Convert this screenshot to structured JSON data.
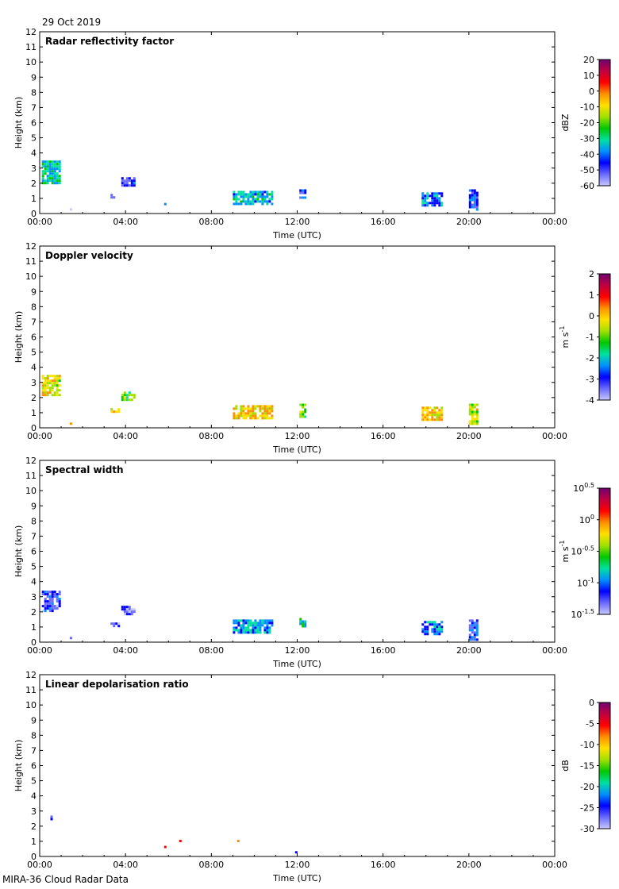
{
  "date": "29 Oct 2019",
  "footer": "MIRA-36 Cloud Radar Data",
  "colors": [
    "#c8c8ff",
    "#6a6aff",
    "#0000ff",
    "#0090ff",
    "#00e0a0",
    "#00c800",
    "#a0e000",
    "#ffe000",
    "#ff9000",
    "#ff0000",
    "#c00040",
    "#700070"
  ],
  "chart_data": [
    {
      "type": "heatmap",
      "title": "Radar reflectivity factor",
      "xlabel": "Time (UTC)",
      "ylabel": "Height (km)",
      "xticks": [
        "00:00",
        "04:00",
        "08:00",
        "12:00",
        "16:00",
        "20:00",
        "00:00"
      ],
      "xlim": [
        0,
        24
      ],
      "ylim": [
        0,
        12
      ],
      "yticks": [
        0,
        1,
        2,
        3,
        4,
        5,
        6,
        7,
        8,
        9,
        10,
        11,
        12
      ],
      "colorbar": {
        "label": "dBZ",
        "ticks": [
          "20",
          "10",
          "0",
          "-10",
          "-20",
          "-30",
          "-40",
          "-50",
          "-60"
        ],
        "range": [
          -60,
          20
        ]
      },
      "echoes": [
        {
          "t0": 0.1,
          "t1": 0.95,
          "h0": 2.0,
          "h1": 3.5,
          "level": 0.35
        },
        {
          "t0": 3.3,
          "t1": 3.7,
          "h0": 1.0,
          "h1": 1.3,
          "level": 0.15
        },
        {
          "t0": 3.8,
          "t1": 4.4,
          "h0": 1.8,
          "h1": 2.4,
          "level": 0.15
        },
        {
          "t0": 9.0,
          "t1": 10.8,
          "h0": 0.6,
          "h1": 1.5,
          "level": 0.32
        },
        {
          "t0": 12.1,
          "t1": 12.4,
          "h0": 1.1,
          "h1": 1.6,
          "level": 0.2
        },
        {
          "t0": 17.8,
          "t1": 18.7,
          "h0": 0.6,
          "h1": 1.4,
          "level": 0.25
        },
        {
          "t0": 20.0,
          "t1": 20.4,
          "h0": 0.3,
          "h1": 1.6,
          "level": 0.18
        },
        {
          "t0": 1.4,
          "t1": 1.5,
          "h0": 0.25,
          "h1": 0.35,
          "level": 0.05
        },
        {
          "t0": 5.8,
          "t1": 5.85,
          "h0": 0.6,
          "h1": 0.7,
          "level": 0.35
        }
      ]
    },
    {
      "type": "heatmap",
      "title": "Doppler velocity",
      "xlabel": "Time (UTC)",
      "ylabel": "Height (km)",
      "xticks": [
        "00:00",
        "04:00",
        "08:00",
        "12:00",
        "16:00",
        "20:00",
        "00:00"
      ],
      "xlim": [
        0,
        24
      ],
      "ylim": [
        0,
        12
      ],
      "yticks": [
        0,
        1,
        2,
        3,
        4,
        5,
        6,
        7,
        8,
        9,
        10,
        11,
        12
      ],
      "colorbar": {
        "label": "m s-1",
        "ticks": [
          "2",
          "1",
          "0",
          "-1",
          "-2",
          "-3",
          "-4"
        ],
        "range": [
          -4,
          2
        ]
      },
      "echoes": [
        {
          "t0": 0.1,
          "t1": 0.95,
          "h0": 2.1,
          "h1": 3.5,
          "level": 0.6
        },
        {
          "t0": 3.3,
          "t1": 3.7,
          "h0": 1.0,
          "h1": 1.3,
          "level": 0.65
        },
        {
          "t0": 3.8,
          "t1": 4.4,
          "h0": 1.8,
          "h1": 2.4,
          "level": 0.5
        },
        {
          "t0": 9.0,
          "t1": 10.8,
          "h0": 0.6,
          "h1": 1.5,
          "level": 0.66
        },
        {
          "t0": 12.1,
          "t1": 12.4,
          "h0": 0.7,
          "h1": 1.6,
          "level": 0.5
        },
        {
          "t0": 17.8,
          "t1": 18.7,
          "h0": 0.6,
          "h1": 1.4,
          "level": 0.66
        },
        {
          "t0": 20.0,
          "t1": 20.4,
          "h0": 0.2,
          "h1": 1.6,
          "level": 0.58
        },
        {
          "t0": 1.4,
          "t1": 1.5,
          "h0": 0.25,
          "h1": 0.35,
          "level": 0.6
        }
      ]
    },
    {
      "type": "heatmap",
      "title": "Spectral width",
      "xlabel": "Time (UTC)",
      "ylabel": "Height (km)",
      "xticks": [
        "00:00",
        "04:00",
        "08:00",
        "12:00",
        "16:00",
        "20:00",
        "00:00"
      ],
      "xlim": [
        0,
        24
      ],
      "ylim": [
        0,
        12
      ],
      "yticks": [
        0,
        1,
        2,
        3,
        4,
        5,
        6,
        7,
        8,
        9,
        10,
        11,
        12
      ],
      "colorbar": {
        "label": "m s-1",
        "ticks": [
          "10^0.5",
          "10^0",
          "10^-0.5",
          "10^-1",
          "10^-1.5"
        ],
        "range": [
          -1.5,
          0.5
        ]
      },
      "echoes": [
        {
          "t0": 0.1,
          "t1": 0.95,
          "h0": 2.1,
          "h1": 3.4,
          "level": 0.15
        },
        {
          "t0": 3.3,
          "t1": 3.7,
          "h0": 1.0,
          "h1": 1.3,
          "level": 0.12
        },
        {
          "t0": 3.8,
          "t1": 4.4,
          "h0": 1.8,
          "h1": 2.4,
          "level": 0.08
        },
        {
          "t0": 9.0,
          "t1": 10.8,
          "h0": 0.6,
          "h1": 1.5,
          "level": 0.28
        },
        {
          "t0": 12.1,
          "t1": 12.4,
          "h0": 1.1,
          "h1": 1.6,
          "level": 0.35
        },
        {
          "t0": 17.8,
          "t1": 18.7,
          "h0": 0.6,
          "h1": 1.4,
          "level": 0.25
        },
        {
          "t0": 20.0,
          "t1": 20.4,
          "h0": 0.2,
          "h1": 1.5,
          "level": 0.18
        },
        {
          "t0": 1.4,
          "t1": 1.5,
          "h0": 0.25,
          "h1": 0.35,
          "level": 0.15
        }
      ]
    },
    {
      "type": "heatmap",
      "title": "Linear depolarisation ratio",
      "xlabel": "Time (UTC)",
      "ylabel": "Height (km)",
      "xticks": [
        "00:00",
        "04:00",
        "08:00",
        "12:00",
        "16:00",
        "20:00",
        "00:00"
      ],
      "xlim": [
        0,
        24
      ],
      "ylim": [
        0,
        12
      ],
      "yticks": [
        0,
        1,
        2,
        3,
        4,
        5,
        6,
        7,
        8,
        9,
        10,
        11,
        12
      ],
      "colorbar": {
        "label": "dB",
        "ticks": [
          "0",
          "-5",
          "-10",
          "-15",
          "-20",
          "-25",
          "-30"
        ],
        "range": [
          -30,
          0
        ]
      },
      "echoes": [
        {
          "t0": 0.5,
          "t1": 0.6,
          "h0": 2.4,
          "h1": 2.7,
          "level": 0.15
        },
        {
          "t0": 5.8,
          "t1": 5.85,
          "h0": 0.6,
          "h1": 0.7,
          "level": 0.75
        },
        {
          "t0": 6.5,
          "t1": 6.55,
          "h0": 1.0,
          "h1": 1.1,
          "level": 0.85
        },
        {
          "t0": 9.2,
          "t1": 9.25,
          "h0": 1.0,
          "h1": 1.1,
          "level": 0.85
        },
        {
          "t0": 11.9,
          "t1": 11.95,
          "h0": 0.25,
          "h1": 0.35,
          "level": 0.1
        }
      ]
    }
  ]
}
